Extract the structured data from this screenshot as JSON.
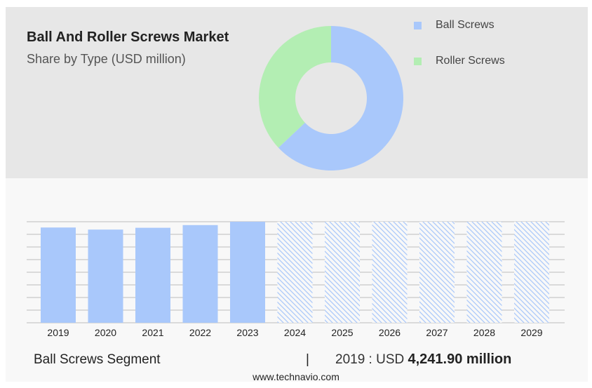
{
  "colors": {
    "ball": "#a9c8fb",
    "roller": "#b3eeb3",
    "forecast_stripe": "#a9c8fb",
    "gridline": "#bdbdbd"
  },
  "header": {
    "title": "Ball And Roller Screws Market",
    "subtitle": "Share by Type (USD million)"
  },
  "chart_data": [
    {
      "type": "pie",
      "donut": true,
      "categories": [
        "Ball Screws",
        "Roller Screws"
      ],
      "values": [
        63,
        37
      ],
      "legend": [
        "Ball Screws",
        "Roller Screws"
      ],
      "legend_position": "right"
    },
    {
      "type": "bar",
      "categories": [
        "2019",
        "2020",
        "2021",
        "2022",
        "2023",
        "2024",
        "2025",
        "2026",
        "2027",
        "2028",
        "2029"
      ],
      "values": [
        4241.9,
        4150,
        4230,
        4350,
        4500,
        4500,
        4500,
        4500,
        4500,
        4500,
        4500
      ],
      "forecast": [
        false,
        false,
        false,
        false,
        false,
        true,
        true,
        true,
        true,
        true,
        true
      ],
      "ylim": [
        0,
        4500
      ],
      "grid": true
    }
  ],
  "footer": {
    "segment_label": "Ball Screws Segment",
    "divider": "|",
    "value_prefix": "2019 : USD ",
    "value_bold": "4,241.90 million",
    "source": "www.technavio.com"
  }
}
